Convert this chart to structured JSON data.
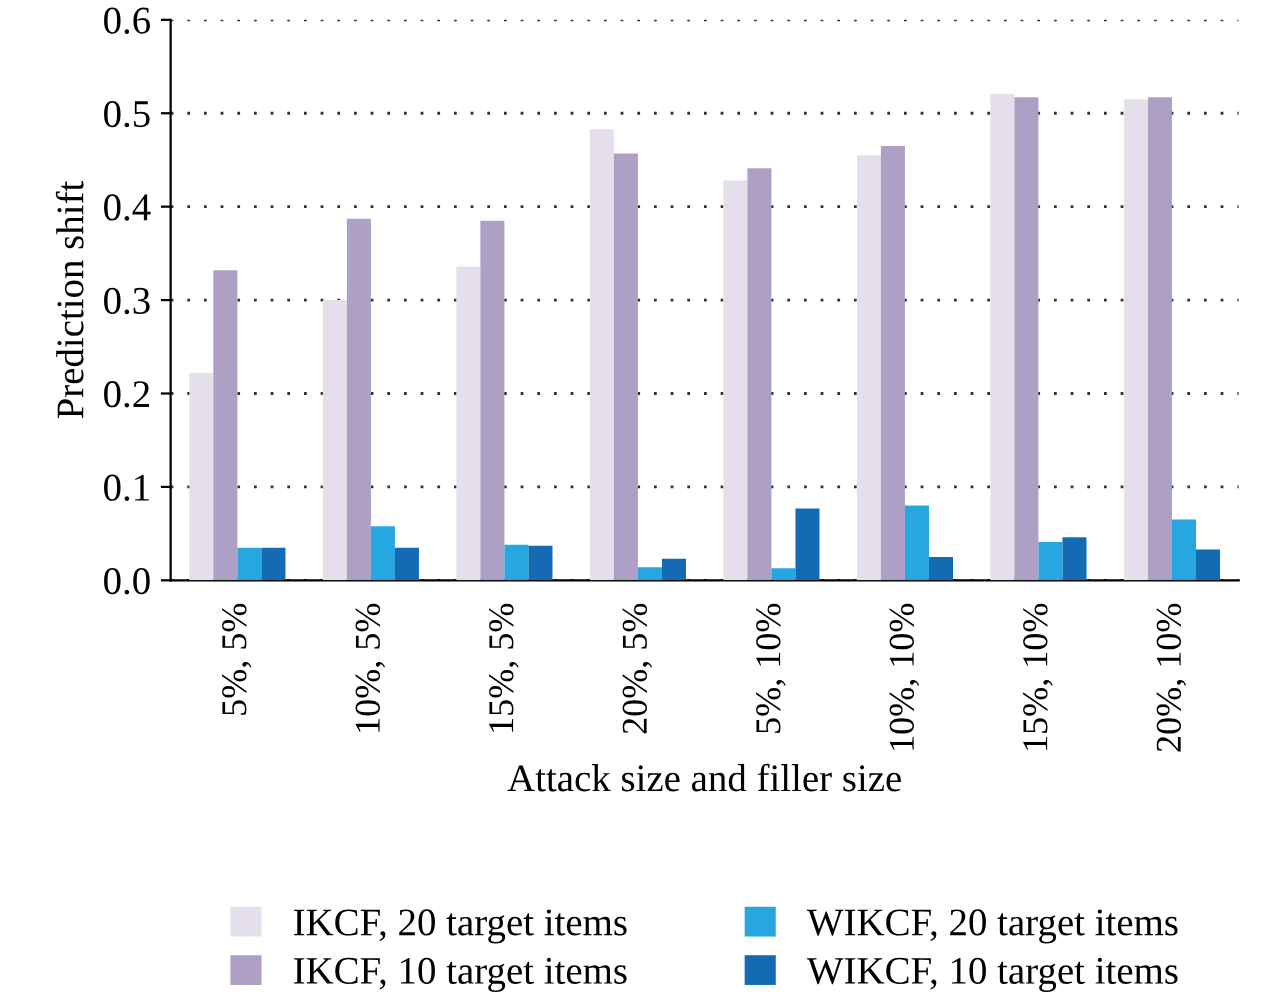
{
  "chart_data": {
    "type": "bar",
    "xlabel": "Attack size and filler size",
    "ylabel": "Prediction shift",
    "categories": [
      "5%, 5%",
      "10%, 5%",
      "15%, 5%",
      "20%, 5%",
      "5%, 10%",
      "10%, 10%",
      "15%, 10%",
      "20%, 10%"
    ],
    "series": [
      {
        "name": "IKCF, 20 target items",
        "color": "#e4dfeb",
        "values": [
          0.222,
          0.3,
          0.336,
          0.483,
          0.428,
          0.455,
          0.521,
          0.515
        ]
      },
      {
        "name": "IKCF, 10 target items",
        "color": "#ae9fc4",
        "values": [
          0.332,
          0.387,
          0.385,
          0.457,
          0.441,
          0.465,
          0.517,
          0.517
        ]
      },
      {
        "name": "WIKCF, 20 target items",
        "color": "#27a7e0",
        "values": [
          0.035,
          0.058,
          0.038,
          0.014,
          0.013,
          0.08,
          0.041,
          0.065
        ]
      },
      {
        "name": "WIKCF, 10 target items",
        "color": "#156bb3",
        "values": [
          0.035,
          0.035,
          0.037,
          0.023,
          0.077,
          0.025,
          0.046,
          0.033
        ]
      }
    ],
    "ylim": [
      0,
      0.6
    ],
    "yticks": [
      {
        "value": 0,
        "label": "0.0"
      },
      0.1,
      0.2,
      0.3,
      0.4,
      0.5,
      0.6
    ],
    "grid": "y",
    "legend": "bottom"
  }
}
